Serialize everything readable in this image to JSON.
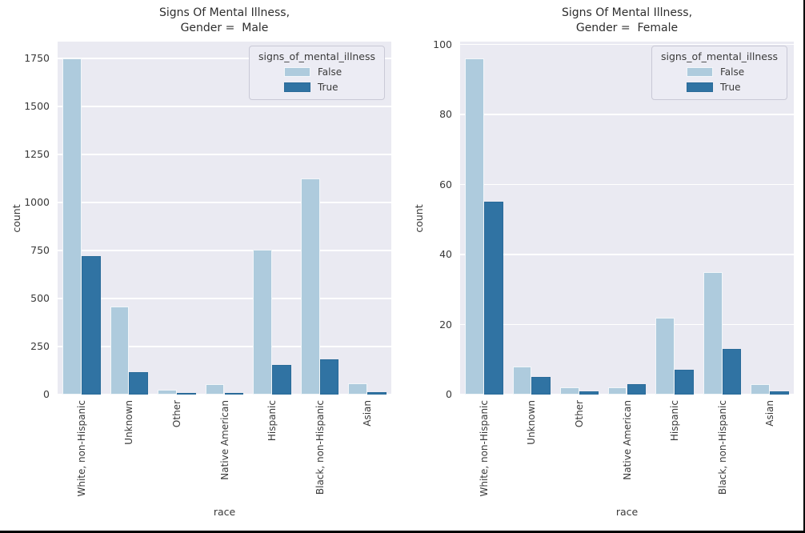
{
  "figure": {
    "background": "#ffffff",
    "axes_background": "#eaeaf2",
    "grid_color": "#ffffff",
    "text_color": "#3a3a3a",
    "border_color": "#000000"
  },
  "chart_data": [
    {
      "type": "bar",
      "facet": "Male",
      "title_line1": "Signs Of Mental Illness,",
      "title_line2": "Gender =  Male",
      "xlabel": "race",
      "ylabel": "count",
      "categories": [
        "White, non-Hispanic",
        "Unknown",
        "Other",
        "Native American",
        "Hispanic",
        "Black, non-Hispanic",
        "Asian"
      ],
      "yticks": [
        0,
        250,
        500,
        750,
        1000,
        1250,
        1500,
        1750
      ],
      "ylim": [
        0,
        1837
      ],
      "grid": true,
      "legend": {
        "title": "signs_of_mental_illness",
        "position": "upper right"
      },
      "series": [
        {
          "name": "False",
          "color": "#aecbdd",
          "edge": "#f2f6f9",
          "values": [
            1750,
            460,
            27,
            54,
            756,
            1125,
            58
          ]
        },
        {
          "name": "True",
          "color": "#3073a3",
          "edge": "#2a6b99",
          "values": [
            720,
            115,
            8,
            8,
            155,
            185,
            13
          ]
        }
      ]
    },
    {
      "type": "bar",
      "facet": "Female",
      "title_line1": "Signs Of Mental Illness,",
      "title_line2": "Gender =  Female",
      "xlabel": "race",
      "ylabel": "count",
      "categories": [
        "White, non-Hispanic",
        "Unknown",
        "Other",
        "Native American",
        "Hispanic",
        "Black, non-Hispanic",
        "Asian"
      ],
      "yticks": [
        0,
        20,
        40,
        60,
        80,
        100
      ],
      "ylim": [
        0,
        100.8
      ],
      "grid": true,
      "legend": {
        "title": "signs_of_mental_illness",
        "position": "upper right"
      },
      "series": [
        {
          "name": "False",
          "color": "#aecbdd",
          "edge": "#f2f6f9",
          "values": [
            96,
            8,
            2,
            2,
            22,
            35,
            3
          ]
        },
        {
          "name": "True",
          "color": "#3073a3",
          "edge": "#2a6b99",
          "values": [
            55,
            5,
            1,
            3,
            7,
            13,
            1
          ]
        }
      ]
    }
  ]
}
